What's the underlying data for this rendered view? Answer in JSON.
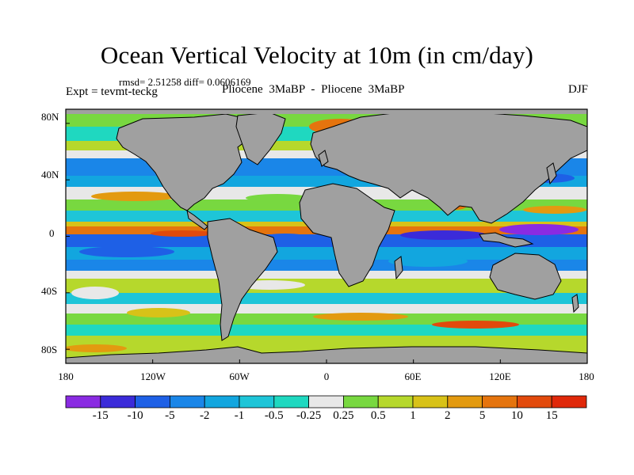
{
  "title": "Ocean Vertical Velocity at 10m (in cm/day)",
  "stats": "rmsd= 2.51258 diff= 0.0606169",
  "experiment": "Expt = tevmt-teckg",
  "comparison": "Pliocene  3MaBP - Pliocene  3MaBP",
  "season": "DJF",
  "lat_labels": [
    "80N",
    "40N",
    "0",
    "40S",
    "80S"
  ],
  "lon_labels": [
    "180",
    "120W",
    "60W",
    "0",
    "60E",
    "120E",
    "180"
  ],
  "colorbar": {
    "labels": [
      "-15",
      "-10",
      "-5",
      "-2",
      "-1",
      "-0.5",
      "-0.25",
      "0.25",
      "0.5",
      "1",
      "2",
      "5",
      "10",
      "15"
    ],
    "colors": [
      "#8a2be2",
      "#3b2bd9",
      "#1e60e6",
      "#1a86e8",
      "#12a6df",
      "#1ec5d8",
      "#1fd8c0",
      "#e8e8e8",
      "#78d840",
      "#b6d82c",
      "#d8c218",
      "#e39a10",
      "#e5740e",
      "#e24a0c",
      "#e0280a"
    ]
  },
  "land_color": "#a0a0a0",
  "extent": {
    "lon": [
      -180,
      180
    ],
    "lat": [
      -90,
      90
    ]
  }
}
